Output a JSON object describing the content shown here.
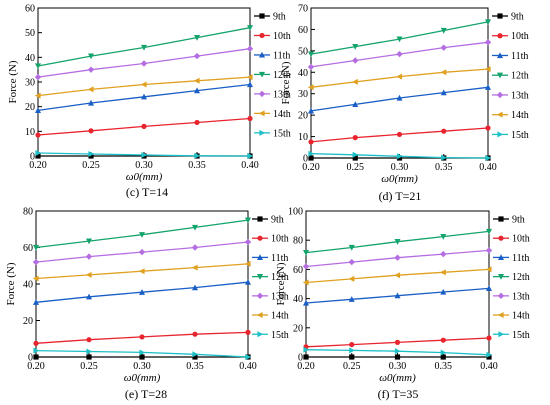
{
  "legend": [
    "9th",
    "10th",
    "11th",
    "12th",
    "13th",
    "14th",
    "15th"
  ],
  "series_colors": [
    "#000000",
    "#e8252f",
    "#1a5fc5",
    "#13a36b",
    "#b56ee2",
    "#e0a020",
    "#1ec0c8"
  ],
  "chart_data": [
    {
      "type": "line",
      "caption": "(c) T=14",
      "xlabel": "ω0(mm)",
      "ylabel": "Force (N)",
      "x": [
        0.2,
        0.25,
        0.3,
        0.35,
        0.4
      ],
      "xlim": [
        0.2,
        0.4
      ],
      "ylim": [
        0,
        60
      ],
      "xticks": [
        "0.20",
        "0.25",
        "0.30",
        "0.35",
        "0.40"
      ],
      "yticks": [
        "0",
        "10",
        "20",
        "30",
        "40",
        "50",
        "60"
      ],
      "series": [
        {
          "name": "9th",
          "values": [
            0,
            0,
            0,
            0,
            0
          ]
        },
        {
          "name": "10th",
          "values": [
            8.5,
            10.2,
            12,
            13.6,
            15.2
          ]
        },
        {
          "name": "11th",
          "values": [
            18.5,
            21.5,
            24,
            26.5,
            29
          ]
        },
        {
          "name": "12th",
          "values": [
            36.5,
            40.5,
            44,
            48,
            52
          ]
        },
        {
          "name": "13th",
          "values": [
            32,
            35,
            37.5,
            40.5,
            43.5
          ]
        },
        {
          "name": "14th",
          "values": [
            24.5,
            27,
            29,
            30.5,
            32
          ]
        },
        {
          "name": "15th",
          "values": [
            1.2,
            0.8,
            0.4,
            0.1,
            0
          ]
        }
      ],
      "legend_position": "top-right"
    },
    {
      "type": "line",
      "caption": "(d) T=21",
      "xlabel": "ω0(mm)",
      "ylabel": "Force (N)",
      "x": [
        0.2,
        0.25,
        0.3,
        0.35,
        0.4
      ],
      "xlim": [
        0.2,
        0.4
      ],
      "ylim": [
        0,
        70
      ],
      "xticks": [
        "0.20",
        "0.25",
        "0.30",
        "0.35",
        "0.40"
      ],
      "yticks": [
        "0",
        "10",
        "20",
        "30",
        "40",
        "50",
        "60",
        "70"
      ],
      "series": [
        {
          "name": "9th",
          "values": [
            0,
            0,
            0,
            0,
            0
          ]
        },
        {
          "name": "10th",
          "values": [
            7.5,
            9.5,
            11,
            12.5,
            14
          ]
        },
        {
          "name": "11th",
          "values": [
            22,
            25,
            28,
            30.5,
            33
          ]
        },
        {
          "name": "12th",
          "values": [
            48.5,
            52,
            55.5,
            59.5,
            63.5
          ]
        },
        {
          "name": "13th",
          "values": [
            42.5,
            45.5,
            48.5,
            51.5,
            54
          ]
        },
        {
          "name": "14th",
          "values": [
            33,
            35.5,
            38,
            40,
            41.5
          ]
        },
        {
          "name": "15th",
          "values": [
            2,
            1.5,
            0.8,
            0.2,
            0
          ]
        }
      ],
      "legend_position": "top-right"
    },
    {
      "type": "line",
      "caption": "(e) T=28",
      "xlabel": "ω0(mm)",
      "ylabel": "Force (N)",
      "x": [
        0.2,
        0.25,
        0.3,
        0.35,
        0.4
      ],
      "xlim": [
        0.2,
        0.4
      ],
      "ylim": [
        0,
        80
      ],
      "xticks": [
        "0.20",
        "0.25",
        "0.30",
        "0.35",
        "0.40"
      ],
      "yticks": [
        "0",
        "20",
        "40",
        "60",
        "80"
      ],
      "series": [
        {
          "name": "9th",
          "values": [
            0,
            0,
            0,
            0,
            0
          ]
        },
        {
          "name": "10th",
          "values": [
            7.5,
            9.5,
            11,
            12.5,
            13.5
          ]
        },
        {
          "name": "11th",
          "values": [
            30,
            33,
            35.5,
            38,
            41
          ]
        },
        {
          "name": "12th",
          "values": [
            60,
            63.5,
            67,
            71,
            75
          ]
        },
        {
          "name": "13th",
          "values": [
            52,
            55,
            57.5,
            60,
            63
          ]
        },
        {
          "name": "14th",
          "values": [
            43,
            45,
            47,
            49,
            51
          ]
        },
        {
          "name": "15th",
          "values": [
            3.5,
            3,
            2.5,
            1.5,
            0
          ]
        }
      ],
      "legend_position": "top-right"
    },
    {
      "type": "line",
      "caption": "(f) T=35",
      "xlabel": "ω0(mm)",
      "ylabel": "Force (N)",
      "x": [
        0.2,
        0.25,
        0.3,
        0.35,
        0.4
      ],
      "xlim": [
        0.2,
        0.4
      ],
      "ylim": [
        0,
        100
      ],
      "xticks": [
        "0.20",
        "0.25",
        "0.30",
        "0.35",
        "0.40"
      ],
      "yticks": [
        "0",
        "20",
        "40",
        "60",
        "80",
        "100"
      ],
      "series": [
        {
          "name": "9th",
          "values": [
            0,
            0,
            0,
            0,
            0
          ]
        },
        {
          "name": "10th",
          "values": [
            7,
            8.5,
            10,
            11.5,
            13
          ]
        },
        {
          "name": "11th",
          "values": [
            37,
            39.5,
            42,
            44.5,
            47
          ]
        },
        {
          "name": "12th",
          "values": [
            71.5,
            75,
            79,
            82.5,
            86
          ]
        },
        {
          "name": "13th",
          "values": [
            62,
            65,
            68,
            70.5,
            73
          ]
        },
        {
          "name": "14th",
          "values": [
            51,
            53.5,
            56,
            58,
            60
          ]
        },
        {
          "name": "15th",
          "values": [
            5,
            4.5,
            4,
            3,
            1.5
          ]
        }
      ],
      "legend_position": "top-right"
    }
  ]
}
